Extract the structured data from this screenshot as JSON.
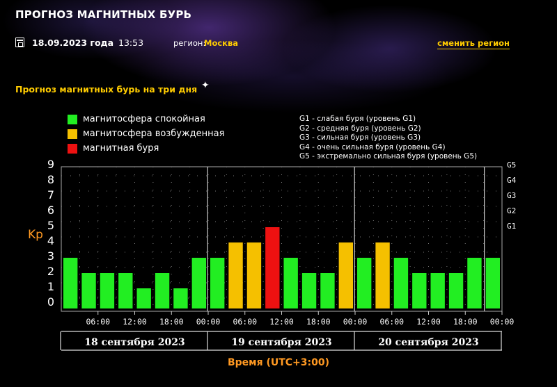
{
  "header": {
    "site_title": "ПРОГНОЗ МАГНИТНЫХ БУРЬ",
    "date": "18.09.2023 года",
    "time": "13:53",
    "region_label": "регион:",
    "region_value": "Москва",
    "change_region": "сменить регион",
    "icons": [
      "calendar-icon",
      "sparkle-icon"
    ]
  },
  "section_title": "Прогноз магнитных бурь на три дня",
  "legend": [
    {
      "label": "магнитосфера спокойная",
      "color": "#22ee22"
    },
    {
      "label": "магнитосфера возбужденная",
      "color": "#f5c000"
    },
    {
      "label": "магнитная буря",
      "color": "#ee1111"
    }
  ],
  "g_legend": [
    "G1 - слабая буря (уровень G1)",
    "G2 - средняя буря (уровень G2)",
    "G3 - сильная буря (уровень G3)",
    "G4 - очень сильная буря (уровень G4)",
    "G5 - экстремально сильная буря (уровень G5)"
  ],
  "chart_data": {
    "type": "bar",
    "ylabel": "Kp",
    "xlabel": "Время (UTC+3:00)",
    "ylim": [
      0,
      9
    ],
    "y_ticks": [
      "0",
      "1",
      "2",
      "3",
      "4",
      "5",
      "6",
      "7",
      "8",
      "9"
    ],
    "g_ticks": [
      {
        "label": "G1",
        "kp": 5
      },
      {
        "label": "G2",
        "kp": 6
      },
      {
        "label": "G3",
        "kp": 7
      },
      {
        "label": "G4",
        "kp": 8
      },
      {
        "label": "G5",
        "kp": 9
      }
    ],
    "x_tick_labels": [
      "06:00",
      "12:00",
      "18:00",
      "00:00",
      "06:00",
      "12:00",
      "18:00",
      "00:00",
      "06:00",
      "12:00",
      "18:00",
      "00:00"
    ],
    "days": [
      "18 сентября 2023",
      "19 сентября 2023",
      "20 сентября 2023"
    ],
    "values": [
      3,
      2,
      2,
      2,
      1,
      2,
      1,
      3,
      3,
      4,
      4,
      5,
      3,
      2,
      2,
      4,
      3,
      4,
      3,
      2,
      2,
      2,
      3,
      3
    ],
    "colors": {
      "calm": "#22ee22",
      "excited": "#f5c000",
      "storm": "#ee1111"
    },
    "grid": "dotted"
  }
}
